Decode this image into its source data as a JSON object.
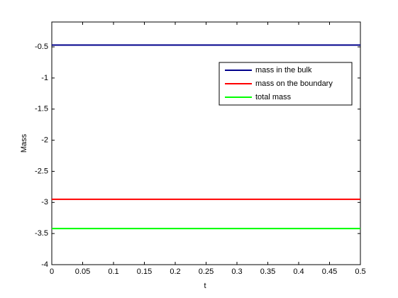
{
  "chart_data": {
    "type": "line",
    "x_label": "t",
    "y_label": "Mass",
    "x": [
      0,
      0.5
    ],
    "series": [
      {
        "name": "mass in the bulk",
        "color": "#00008b",
        "values": [
          -0.47,
          -0.47
        ]
      },
      {
        "name": "mass on the boundary",
        "color": "#ff0000",
        "values": [
          -2.95,
          -2.95
        ]
      },
      {
        "name": "total mass",
        "color": "#00ff00",
        "values": [
          -3.42,
          -3.42
        ]
      }
    ],
    "xlim": [
      0,
      0.5
    ],
    "ylim": [
      -4,
      -0.1
    ],
    "xticks": [
      0,
      0.05,
      0.1,
      0.15,
      0.2,
      0.25,
      0.3,
      0.35,
      0.4,
      0.45,
      0.5
    ],
    "yticks": [
      -4,
      -3.5,
      -3,
      -2.5,
      -2,
      -1.5,
      -1,
      -0.5
    ],
    "grid": false,
    "legend": "upper right"
  }
}
